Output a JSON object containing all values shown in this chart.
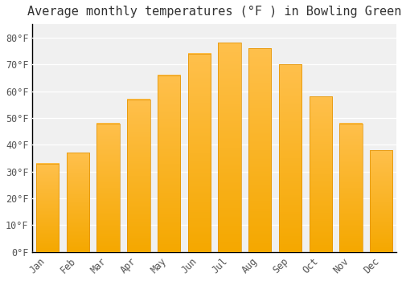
{
  "title": "Average monthly temperatures (°F ) in Bowling Green",
  "months": [
    "Jan",
    "Feb",
    "Mar",
    "Apr",
    "May",
    "Jun",
    "Jul",
    "Aug",
    "Sep",
    "Oct",
    "Nov",
    "Dec"
  ],
  "values": [
    33,
    37,
    48,
    57,
    66,
    74,
    78,
    76,
    70,
    58,
    48,
    38
  ],
  "bar_color_top": "#FFC04C",
  "bar_color_bottom": "#F5A800",
  "bar_edge_color": "#E09000",
  "background_color": "#FFFFFF",
  "plot_bg_color": "#F0F0F0",
  "grid_color": "#FFFFFF",
  "text_color": "#555555",
  "spine_color": "#000000",
  "ylim": [
    0,
    85
  ],
  "yticks": [
    0,
    10,
    20,
    30,
    40,
    50,
    60,
    70,
    80
  ],
  "ylabel_suffix": "°F",
  "title_fontsize": 11,
  "tick_fontsize": 8.5,
  "font_family": "monospace",
  "bar_width": 0.75
}
